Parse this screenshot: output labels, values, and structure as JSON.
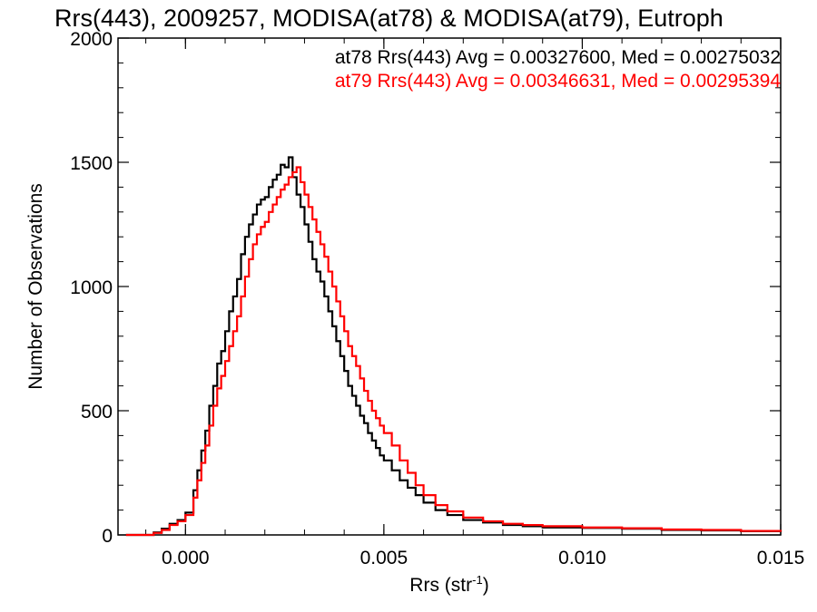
{
  "chart_data": {
    "type": "line",
    "title": "Rrs(443), 2009257, MODISA(at78) & MODISA(at79), Eutroph",
    "xlabel_main": "Rrs (str",
    "xlabel_sup": "-1",
    "xlabel_close": ")",
    "ylabel": "Number of Observations",
    "xlim": [
      -0.0017,
      0.015
    ],
    "ylim": [
      0,
      2000
    ],
    "x_ticks": [
      0.0,
      0.005,
      0.01,
      0.015
    ],
    "x_tick_labels": [
      "0.000",
      "0.005",
      "0.010",
      "0.015"
    ],
    "y_ticks": [
      0,
      500,
      1000,
      1500,
      2000
    ],
    "y_tick_labels": [
      "0",
      "500",
      "1000",
      "1500",
      "2000"
    ],
    "grid": false,
    "legend_position": "top-right",
    "series": [
      {
        "name": "at78 Rrs(443) Avg = 0.00327600, Med = 0.00275032",
        "color": "#000000",
        "x": [
          -0.0015,
          -0.001,
          -0.0008,
          -0.0006,
          -0.0004,
          -0.0002,
          0.0,
          0.0002,
          0.0003,
          0.0004,
          0.0005,
          0.0006,
          0.0007,
          0.0008,
          0.0009,
          0.001,
          0.0011,
          0.0012,
          0.0013,
          0.0014,
          0.0015,
          0.0016,
          0.0017,
          0.0018,
          0.0019,
          0.002,
          0.0021,
          0.0022,
          0.0023,
          0.0024,
          0.0025,
          0.0026,
          0.0027,
          0.0028,
          0.0029,
          0.003,
          0.0031,
          0.0032,
          0.0033,
          0.0034,
          0.0035,
          0.0036,
          0.0037,
          0.0038,
          0.0039,
          0.004,
          0.0041,
          0.0042,
          0.0043,
          0.0044,
          0.0045,
          0.0046,
          0.0047,
          0.0048,
          0.0049,
          0.005,
          0.0052,
          0.0054,
          0.0056,
          0.0058,
          0.006,
          0.0063,
          0.0066,
          0.007,
          0.0075,
          0.008,
          0.0085,
          0.009,
          0.01,
          0.011,
          0.012,
          0.013,
          0.014,
          0.015
        ],
        "values": [
          0,
          0,
          10,
          25,
          45,
          60,
          90,
          180,
          260,
          340,
          420,
          520,
          600,
          690,
          740,
          820,
          900,
          960,
          1030,
          1130,
          1200,
          1250,
          1290,
          1330,
          1350,
          1360,
          1400,
          1430,
          1450,
          1490,
          1480,
          1520,
          1440,
          1370,
          1320,
          1250,
          1180,
          1110,
          1060,
          1020,
          960,
          900,
          840,
          780,
          720,
          660,
          600,
          560,
          520,
          480,
          450,
          410,
          380,
          350,
          320,
          300,
          260,
          220,
          190,
          160,
          130,
          100,
          80,
          60,
          50,
          40,
          35,
          30,
          28,
          25,
          20,
          18,
          15,
          12
        ]
      },
      {
        "name": "at79 Rrs(443) Avg = 0.00346631, Med = 0.00295394",
        "color": "#ff0000",
        "x": [
          -0.0015,
          -0.001,
          -0.0008,
          -0.0006,
          -0.0004,
          -0.0002,
          0.0,
          0.0002,
          0.0003,
          0.0004,
          0.0005,
          0.0006,
          0.0007,
          0.0008,
          0.0009,
          0.001,
          0.0011,
          0.0012,
          0.0013,
          0.0014,
          0.0015,
          0.0016,
          0.0017,
          0.0018,
          0.0019,
          0.002,
          0.0021,
          0.0022,
          0.0023,
          0.0024,
          0.0025,
          0.0026,
          0.0027,
          0.0028,
          0.0029,
          0.003,
          0.0031,
          0.0032,
          0.0033,
          0.0034,
          0.0035,
          0.0036,
          0.0037,
          0.0038,
          0.0039,
          0.004,
          0.0041,
          0.0042,
          0.0043,
          0.0044,
          0.0045,
          0.0046,
          0.0047,
          0.0048,
          0.0049,
          0.005,
          0.0052,
          0.0054,
          0.0056,
          0.0058,
          0.006,
          0.0063,
          0.0066,
          0.007,
          0.0075,
          0.008,
          0.0085,
          0.009,
          0.01,
          0.011,
          0.012,
          0.013,
          0.014,
          0.015
        ],
        "values": [
          0,
          0,
          8,
          20,
          40,
          55,
          80,
          150,
          220,
          290,
          360,
          440,
          520,
          590,
          640,
          700,
          760,
          820,
          880,
          960,
          1040,
          1110,
          1170,
          1210,
          1240,
          1260,
          1300,
          1330,
          1360,
          1390,
          1410,
          1440,
          1460,
          1480,
          1420,
          1370,
          1320,
          1270,
          1220,
          1170,
          1120,
          1060,
          1000,
          940,
          880,
          820,
          760,
          720,
          680,
          630,
          580,
          540,
          500,
          470,
          440,
          410,
          360,
          300,
          250,
          200,
          160,
          120,
          95,
          70,
          55,
          45,
          40,
          35,
          30,
          27,
          22,
          20,
          16,
          13
        ]
      }
    ]
  }
}
